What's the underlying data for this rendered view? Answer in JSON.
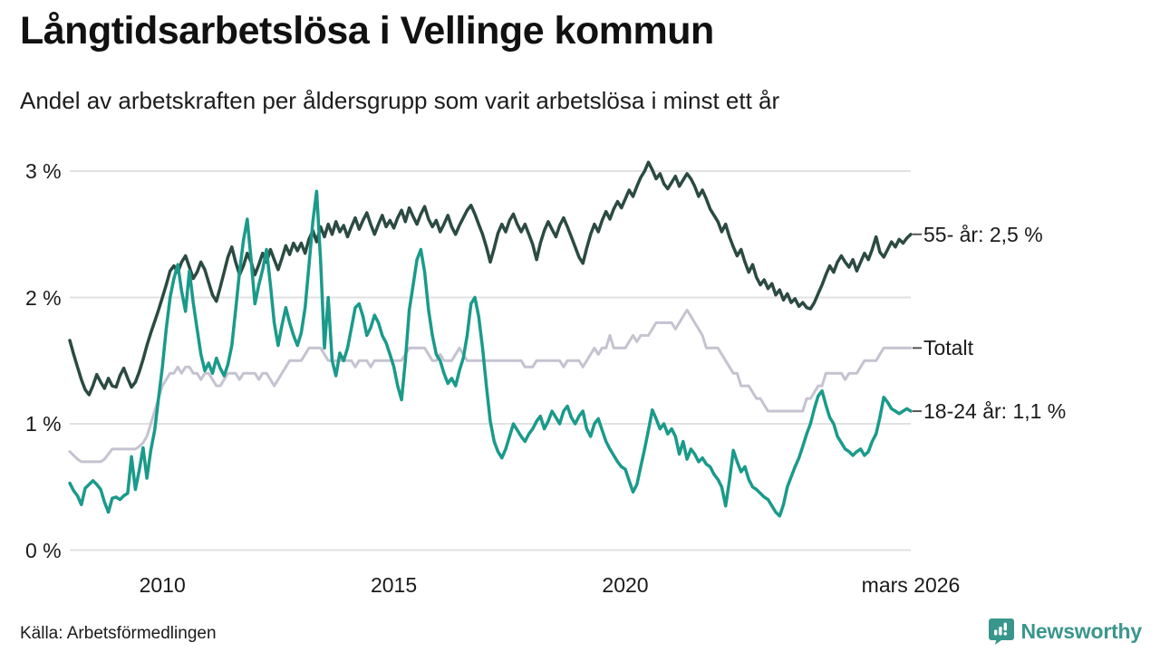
{
  "header": {
    "title": "Långtidsarbetslösa i Vellinge kommun",
    "subtitle": "Andel av arbetskraften per åldersgrupp som varit arbetslösa i minst ett år"
  },
  "chart_data": {
    "type": "line",
    "title": "Långtidsarbetslösa i Vellinge kommun",
    "subtitle": "Andel av arbetskraften per åldersgrupp som varit arbetslösa i minst ett år",
    "x_unit": "month",
    "x_start": "2008-01",
    "x_end": "2026-03",
    "grid": "horizontal",
    "grid_color": "#e2e2e2",
    "legend_position": "end-of-line-labels",
    "y_axis": {
      "min": 0,
      "max": 3.2,
      "ticks": [
        {
          "label": "3 %",
          "value": 3
        },
        {
          "label": "2 %",
          "value": 2
        },
        {
          "label": "1 %",
          "value": 1
        },
        {
          "label": "0 %",
          "value": 0
        }
      ]
    },
    "x_axis": {
      "ticks": [
        {
          "label": "2010",
          "month_index": 24
        },
        {
          "label": "2015",
          "month_index": 84
        },
        {
          "label": "2020",
          "month_index": 144
        },
        {
          "label": "mars 2026",
          "month_index": 218
        }
      ]
    },
    "series": [
      {
        "name": "Totalt",
        "end_label": "Totalt",
        "end_value": 1.6,
        "color": "#c5c3d0",
        "width": 3,
        "values": [
          0.78,
          0.75,
          0.72,
          0.7,
          0.7,
          0.7,
          0.7,
          0.7,
          0.7,
          0.72,
          0.76,
          0.8,
          0.8,
          0.8,
          0.8,
          0.8,
          0.8,
          0.8,
          0.82,
          0.85,
          0.9,
          1.0,
          1.1,
          1.2,
          1.3,
          1.35,
          1.4,
          1.4,
          1.45,
          1.4,
          1.45,
          1.45,
          1.4,
          1.4,
          1.35,
          1.4,
          1.4,
          1.35,
          1.3,
          1.3,
          1.35,
          1.4,
          1.4,
          1.4,
          1.35,
          1.4,
          1.4,
          1.4,
          1.4,
          1.35,
          1.4,
          1.4,
          1.35,
          1.3,
          1.35,
          1.4,
          1.45,
          1.5,
          1.5,
          1.5,
          1.5,
          1.55,
          1.6,
          1.6,
          1.6,
          1.6,
          1.55,
          1.5,
          1.5,
          1.5,
          1.5,
          1.5,
          1.5,
          1.5,
          1.45,
          1.5,
          1.5,
          1.5,
          1.45,
          1.5,
          1.5,
          1.5,
          1.5,
          1.5,
          1.5,
          1.5,
          1.5,
          1.55,
          1.6,
          1.6,
          1.6,
          1.6,
          1.6,
          1.55,
          1.5,
          1.5,
          1.55,
          1.5,
          1.5,
          1.5,
          1.55,
          1.6,
          1.55,
          1.5,
          1.5,
          1.5,
          1.5,
          1.5,
          1.5,
          1.5,
          1.5,
          1.5,
          1.5,
          1.5,
          1.5,
          1.5,
          1.5,
          1.5,
          1.45,
          1.45,
          1.45,
          1.5,
          1.5,
          1.5,
          1.5,
          1.5,
          1.5,
          1.5,
          1.45,
          1.5,
          1.5,
          1.5,
          1.5,
          1.45,
          1.5,
          1.55,
          1.6,
          1.55,
          1.6,
          1.6,
          1.7,
          1.6,
          1.6,
          1.6,
          1.6,
          1.65,
          1.7,
          1.65,
          1.7,
          1.7,
          1.7,
          1.75,
          1.8,
          1.8,
          1.8,
          1.8,
          1.8,
          1.75,
          1.8,
          1.85,
          1.9,
          1.85,
          1.8,
          1.75,
          1.7,
          1.6,
          1.6,
          1.6,
          1.6,
          1.55,
          1.5,
          1.45,
          1.4,
          1.4,
          1.3,
          1.3,
          1.3,
          1.25,
          1.2,
          1.2,
          1.15,
          1.1,
          1.1,
          1.1,
          1.1,
          1.1,
          1.1,
          1.1,
          1.1,
          1.1,
          1.1,
          1.2,
          1.2,
          1.25,
          1.3,
          1.3,
          1.4,
          1.4,
          1.4,
          1.4,
          1.4,
          1.35,
          1.4,
          1.4,
          1.4,
          1.45,
          1.5,
          1.5,
          1.5,
          1.5,
          1.55,
          1.6,
          1.6,
          1.6,
          1.6,
          1.6,
          1.6,
          1.6,
          1.6
        ]
      },
      {
        "name": "55- år",
        "end_label": "55- år: 2,5 %",
        "end_value": 2.5,
        "color": "#2b4a42",
        "width": 3.5,
        "values": [
          1.66,
          1.55,
          1.45,
          1.35,
          1.27,
          1.23,
          1.3,
          1.39,
          1.33,
          1.28,
          1.36,
          1.3,
          1.29,
          1.38,
          1.44,
          1.36,
          1.29,
          1.33,
          1.41,
          1.51,
          1.62,
          1.72,
          1.81,
          1.9,
          2.0,
          2.1,
          2.21,
          2.25,
          2.2,
          2.28,
          2.33,
          2.24,
          2.15,
          2.2,
          2.28,
          2.22,
          2.12,
          2.02,
          1.97,
          2.08,
          2.2,
          2.32,
          2.4,
          2.28,
          2.18,
          2.25,
          2.35,
          2.28,
          2.18,
          2.26,
          2.35,
          2.28,
          2.38,
          2.3,
          2.22,
          2.31,
          2.41,
          2.34,
          2.43,
          2.37,
          2.43,
          2.35,
          2.46,
          2.53,
          2.44,
          2.56,
          2.48,
          2.58,
          2.5,
          2.6,
          2.52,
          2.57,
          2.48,
          2.56,
          2.63,
          2.54,
          2.61,
          2.67,
          2.58,
          2.5,
          2.58,
          2.65,
          2.56,
          2.61,
          2.55,
          2.63,
          2.69,
          2.6,
          2.71,
          2.64,
          2.58,
          2.66,
          2.72,
          2.62,
          2.56,
          2.61,
          2.52,
          2.58,
          2.65,
          2.56,
          2.5,
          2.57,
          2.63,
          2.69,
          2.73,
          2.66,
          2.58,
          2.5,
          2.4,
          2.28,
          2.39,
          2.51,
          2.58,
          2.52,
          2.61,
          2.66,
          2.58,
          2.52,
          2.58,
          2.5,
          2.42,
          2.3,
          2.43,
          2.53,
          2.6,
          2.54,
          2.48,
          2.57,
          2.63,
          2.56,
          2.48,
          2.4,
          2.32,
          2.27,
          2.39,
          2.5,
          2.58,
          2.52,
          2.61,
          2.68,
          2.62,
          2.7,
          2.76,
          2.71,
          2.78,
          2.85,
          2.8,
          2.88,
          2.95,
          3.0,
          3.07,
          3.01,
          2.94,
          2.98,
          2.9,
          2.86,
          2.91,
          2.96,
          2.88,
          2.93,
          2.98,
          2.94,
          2.88,
          2.8,
          2.85,
          2.78,
          2.7,
          2.65,
          2.6,
          2.52,
          2.58,
          2.48,
          2.4,
          2.33,
          2.38,
          2.28,
          2.2,
          2.26,
          2.16,
          2.1,
          2.14,
          2.07,
          2.11,
          2.02,
          2.06,
          1.98,
          2.03,
          1.96,
          1.99,
          1.93,
          1.96,
          1.92,
          1.91,
          1.96,
          2.03,
          2.1,
          2.18,
          2.25,
          2.2,
          2.28,
          2.33,
          2.28,
          2.24,
          2.3,
          2.21,
          2.28,
          2.35,
          2.3,
          2.38,
          2.48,
          2.36,
          2.32,
          2.38,
          2.44,
          2.4,
          2.46,
          2.43,
          2.47,
          2.5
        ]
      },
      {
        "name": "18-24 år",
        "end_label": "18-24 år: 1,1 %",
        "end_value": 1.1,
        "color": "#1a9a8a",
        "width": 3.5,
        "values": [
          0.53,
          0.47,
          0.43,
          0.36,
          0.49,
          0.52,
          0.55,
          0.52,
          0.48,
          0.38,
          0.3,
          0.41,
          0.42,
          0.4,
          0.43,
          0.45,
          0.74,
          0.48,
          0.63,
          0.81,
          0.57,
          0.79,
          0.95,
          1.2,
          1.45,
          1.75,
          2.0,
          2.15,
          2.26,
          2.05,
          1.89,
          2.21,
          1.96,
          1.75,
          1.55,
          1.42,
          1.48,
          1.4,
          1.52,
          1.44,
          1.38,
          1.47,
          1.62,
          1.9,
          2.2,
          2.45,
          2.62,
          2.3,
          1.95,
          2.1,
          2.22,
          2.38,
          2.1,
          1.8,
          1.62,
          1.78,
          1.92,
          1.8,
          1.7,
          1.62,
          1.72,
          1.92,
          2.25,
          2.6,
          2.84,
          2.3,
          1.6,
          2.0,
          1.5,
          1.38,
          1.56,
          1.5,
          1.6,
          1.76,
          1.92,
          1.95,
          1.85,
          1.7,
          1.76,
          1.86,
          1.8,
          1.7,
          1.64,
          1.55,
          1.45,
          1.3,
          1.19,
          1.5,
          1.9,
          2.1,
          2.3,
          2.38,
          2.2,
          1.9,
          1.7,
          1.55,
          1.5,
          1.4,
          1.32,
          1.36,
          1.3,
          1.42,
          1.52,
          1.7,
          1.95,
          2.0,
          1.85,
          1.6,
          1.3,
          1.02,
          0.86,
          0.78,
          0.73,
          0.8,
          0.9,
          1.0,
          0.95,
          0.9,
          0.86,
          0.92,
          0.96,
          1.02,
          1.06,
          0.96,
          1.02,
          1.1,
          1.05,
          1.0,
          1.1,
          1.14,
          1.05,
          1.0,
          1.06,
          1.1,
          0.96,
          0.9,
          1.0,
          1.04,
          0.95,
          0.86,
          0.8,
          0.75,
          0.7,
          0.66,
          0.64,
          0.55,
          0.46,
          0.52,
          0.66,
          0.8,
          0.95,
          1.11,
          1.04,
          0.96,
          1.0,
          0.92,
          0.96,
          0.9,
          0.76,
          0.86,
          0.72,
          0.8,
          0.76,
          0.7,
          0.73,
          0.68,
          0.66,
          0.6,
          0.56,
          0.5,
          0.35,
          0.55,
          0.79,
          0.7,
          0.62,
          0.66,
          0.56,
          0.5,
          0.48,
          0.45,
          0.42,
          0.4,
          0.35,
          0.3,
          0.27,
          0.36,
          0.5,
          0.58,
          0.66,
          0.73,
          0.82,
          0.92,
          1.0,
          1.12,
          1.22,
          1.26,
          1.15,
          1.05,
          1.0,
          0.9,
          0.85,
          0.8,
          0.78,
          0.75,
          0.78,
          0.8,
          0.75,
          0.78,
          0.86,
          0.92,
          1.05,
          1.21,
          1.17,
          1.12,
          1.1,
          1.08,
          1.1,
          1.12,
          1.1
        ]
      }
    ]
  },
  "footer": {
    "source": "Källa: Arbetsförmedlingen",
    "brand": "Newsworthy",
    "brand_color": "#39968c"
  }
}
